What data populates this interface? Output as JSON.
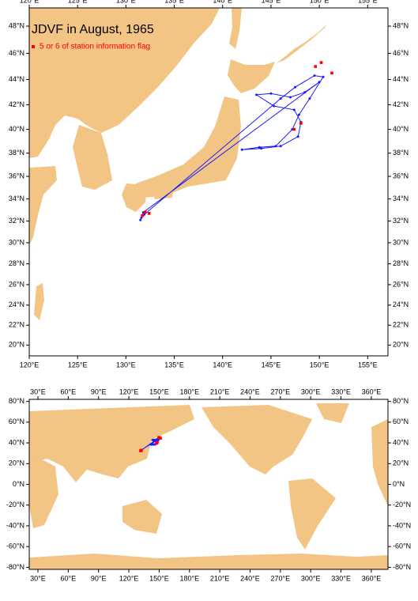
{
  "maps": [
    {
      "title": "JDVF in August, 1965",
      "legend": "5 or 6 of station information flag",
      "xlim": [
        120,
        157.1
      ],
      "ylim": [
        18.9,
        49.3
      ],
      "xticks": [
        {
          "value": 120,
          "label": "120°E"
        },
        {
          "value": 125,
          "label": "125°E"
        },
        {
          "value": 130,
          "label": "130°E"
        },
        {
          "value": 135,
          "label": "135°E"
        },
        {
          "value": 140,
          "label": "140°E"
        },
        {
          "value": 145,
          "label": "145°E"
        },
        {
          "value": 150,
          "label": "150°E"
        },
        {
          "value": 155,
          "label": "155°E"
        }
      ],
      "yticks": [
        {
          "value": 20,
          "label": "20°N"
        },
        {
          "value": 22,
          "label": "22°N"
        },
        {
          "value": 24,
          "label": "24°N"
        },
        {
          "value": 26,
          "label": "26°N"
        },
        {
          "value": 28,
          "label": "28°N"
        },
        {
          "value": 30,
          "label": "30°N"
        },
        {
          "value": 32,
          "label": "32°N"
        },
        {
          "value": 34,
          "label": "34°N"
        },
        {
          "value": 36,
          "label": "36°N"
        },
        {
          "value": 38,
          "label": "38°N"
        },
        {
          "value": 40,
          "label": "40°N"
        },
        {
          "value": 42,
          "label": "42°N"
        },
        {
          "value": 44,
          "label": "44°N"
        },
        {
          "value": 46,
          "label": "46°N"
        },
        {
          "value": 48,
          "label": "48°N"
        }
      ]
    },
    {
      "xlim": [
        21.4,
        376.5
      ],
      "ylim": [
        -82,
        82
      ],
      "xticks": [
        {
          "value": 30,
          "label": "30°E"
        },
        {
          "value": 60,
          "label": "60°E"
        },
        {
          "value": 90,
          "label": "90°E"
        },
        {
          "value": 120,
          "label": "120°E"
        },
        {
          "value": 150,
          "label": "150°E"
        },
        {
          "value": 180,
          "label": "180°E"
        },
        {
          "value": 210,
          "label": "210°E"
        },
        {
          "value": 240,
          "label": "240°E"
        },
        {
          "value": 270,
          "label": "270°E"
        },
        {
          "value": 300,
          "label": "300°E"
        },
        {
          "value": 330,
          "label": "330°E"
        },
        {
          "value": 360,
          "label": "360°E"
        }
      ],
      "yticks": [
        {
          "value": -80,
          "label": "-80°N"
        },
        {
          "value": -60,
          "label": "-60°N"
        },
        {
          "value": -40,
          "label": "-40°N"
        },
        {
          "value": -20,
          "label": "-20°N"
        },
        {
          "value": 0,
          "label": "0°N"
        },
        {
          "value": 20,
          "label": "20°N"
        },
        {
          "value": 40,
          "label": "40°N"
        },
        {
          "value": 60,
          "label": "60°N"
        },
        {
          "value": 80,
          "label": "80°N"
        }
      ]
    }
  ],
  "track": {
    "color": "#1a1aff",
    "lon": [
      131.6,
      131.9,
      146,
      147.5,
      149.5,
      150.4,
      149,
      147.9,
      147.2,
      145.5,
      143.8,
      142,
      144,
      146,
      147.8,
      148.1,
      147.4,
      145.3,
      143.5,
      145,
      147,
      148.5,
      150,
      131.8,
      131.5
    ],
    "lat": [
      32.3,
      32.6,
      42.5,
      43.4,
      44.3,
      44.2,
      42.5,
      41.2,
      40,
      38.6,
      38.5,
      38.3,
      38.4,
      38.6,
      39.4,
      40.6,
      41.6,
      41.9,
      42.8,
      42.9,
      42.6,
      43,
      43.8,
      32.8,
      32.1
    ]
  },
  "flagged": {
    "color": "#ff0000",
    "lon": [
      149.6,
      150.2,
      151.3,
      148.1,
      147.4,
      132,
      131.7,
      132.4
    ],
    "lat": [
      45,
      45.3,
      44.5,
      40.5,
      40,
      32.8,
      32.5,
      32.7
    ]
  }
}
